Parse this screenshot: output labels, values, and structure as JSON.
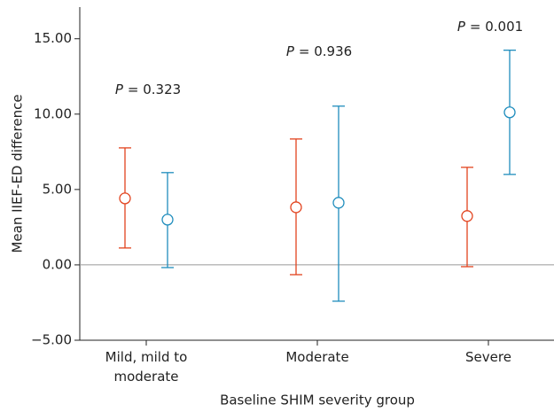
{
  "chart_data": {
    "type": "errorbar",
    "x_label": "Baseline SHIM severity group",
    "y_label": "Mean IIEF-ED difference",
    "categories": [
      "Mild, mild to moderate",
      "Moderate",
      "Severe"
    ],
    "series": [
      {
        "color": "#e2431e",
        "values": [
          4.41,
          3.82,
          3.24
        ],
        "lower": [
          1.12,
          -0.65,
          -0.12
        ],
        "upper": [
          7.76,
          8.35,
          6.47
        ]
      },
      {
        "color": "#1f8dbd",
        "values": [
          3.0,
          4.12,
          10.12
        ],
        "lower": [
          -0.18,
          -2.41,
          6.0
        ],
        "upper": [
          6.12,
          10.53,
          14.24
        ]
      }
    ],
    "ylim": [
      -5,
      17.1
    ],
    "yticks": [
      {
        "value": -5,
        "label": "−5.00"
      },
      {
        "value": 0,
        "label": "0.00"
      },
      {
        "value": 5,
        "label": "5.00"
      },
      {
        "value": 10,
        "label": "10.00"
      },
      {
        "value": 15,
        "label": "15.00"
      }
    ],
    "annotations": [
      {
        "italic": "P",
        "text": "= 0.323"
      },
      {
        "italic": "P",
        "text": "= 0.936"
      },
      {
        "italic": "P",
        "text": "= 0.001"
      }
    ]
  }
}
